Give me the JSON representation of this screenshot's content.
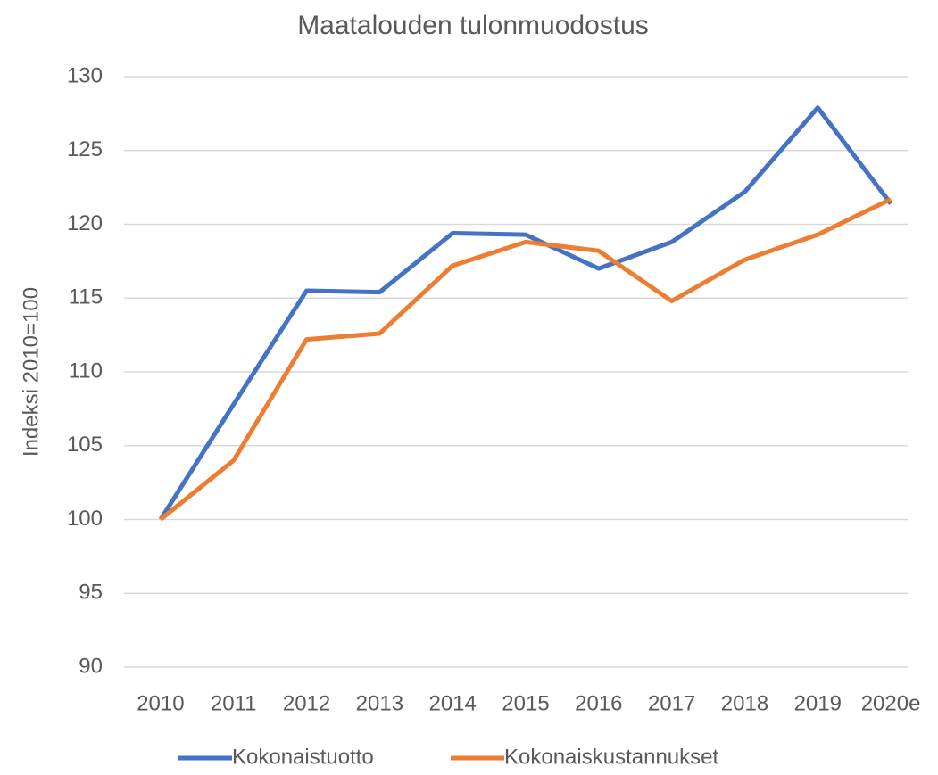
{
  "chart_data": {
    "type": "line",
    "title": "Maatalouden tulonmuodostus",
    "y_label": "Indeksi 2010=100",
    "categories": [
      "2010",
      "2011",
      "2012",
      "2013",
      "2014",
      "2015",
      "2016",
      "2017",
      "2018",
      "2019",
      "2020e"
    ],
    "series": [
      {
        "name": "Kokonaistuotto",
        "color": "#4472c4",
        "values": [
          100,
          107.8,
          115.5,
          115.4,
          119.4,
          119.3,
          117.0,
          118.8,
          122.2,
          127.9,
          121.4
        ]
      },
      {
        "name": "Kokonaiskustannukset",
        "color": "#ed7d31",
        "values": [
          100,
          104.0,
          112.2,
          112.6,
          117.2,
          118.8,
          118.2,
          114.8,
          117.6,
          119.3,
          121.7
        ]
      }
    ],
    "ylim": [
      90,
      130
    ],
    "yticks": [
      90,
      95,
      100,
      105,
      110,
      115,
      120,
      125,
      130
    ],
    "grid": true,
    "legend": "bottom"
  }
}
